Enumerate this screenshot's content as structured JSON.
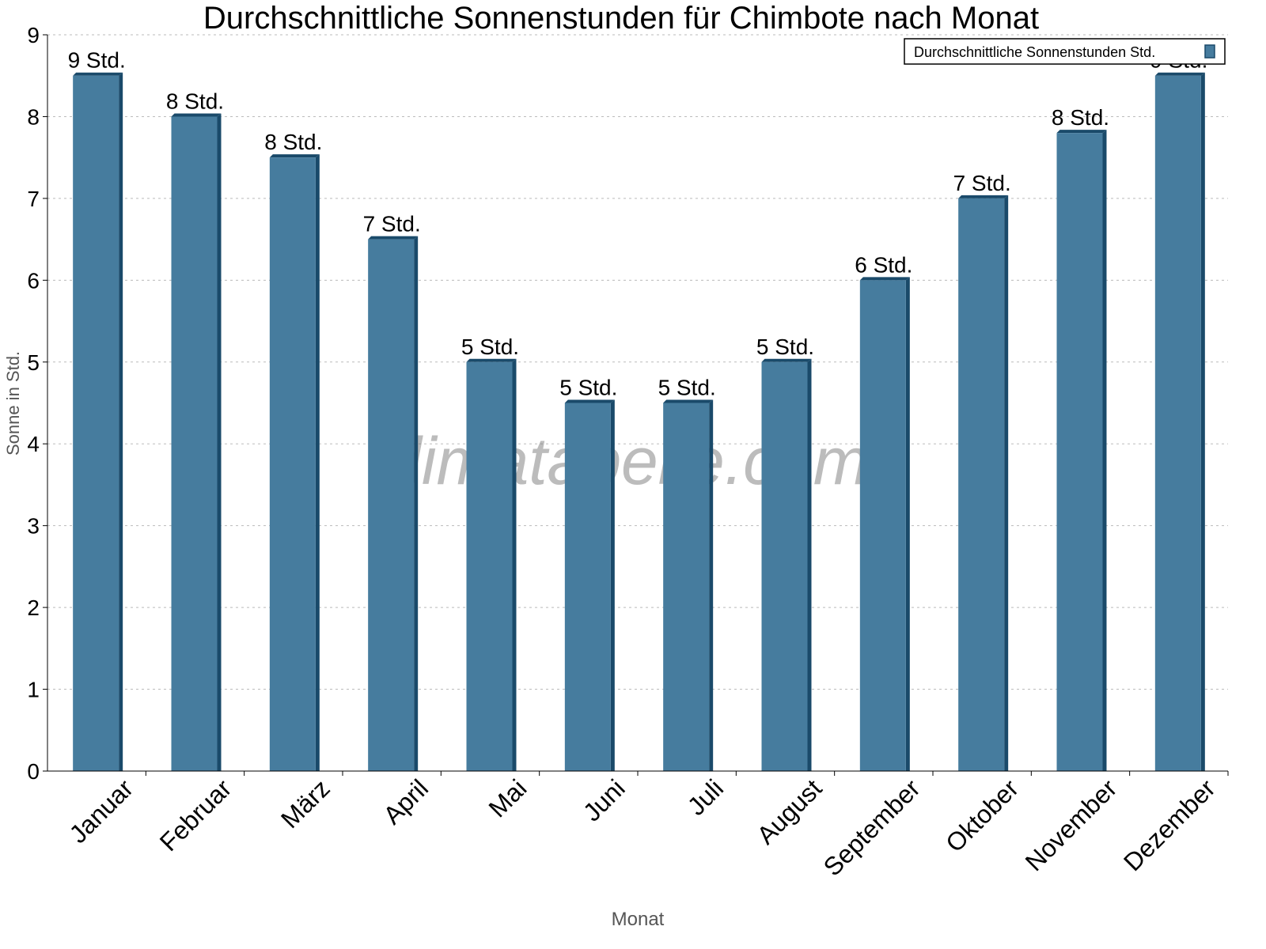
{
  "chart_data": {
    "type": "bar",
    "title": "Durchschnittliche Sonnenstunden für Chimbote nach Monat",
    "xlabel": "Monat",
    "ylabel": "Sonne in Std.",
    "ylim": [
      0,
      9
    ],
    "yticks": [
      0,
      1,
      2,
      3,
      4,
      5,
      6,
      7,
      8,
      9
    ],
    "grid": true,
    "legend_position": "top-right",
    "categories": [
      "Januar",
      "Februar",
      "März",
      "April",
      "Mai",
      "Juni",
      "Juli",
      "August",
      "September",
      "Oktober",
      "November",
      "Dezember"
    ],
    "series": [
      {
        "name": "Durchschnittliche Sonnenstunden Std.",
        "color": "#467c9e",
        "values": [
          8.5,
          8.0,
          7.5,
          6.5,
          5.0,
          4.5,
          4.5,
          5.0,
          6.0,
          7.0,
          7.8,
          8.5
        ],
        "data_labels": [
          "9 Std.",
          "8 Std.",
          "8 Std.",
          "7 Std.",
          "5 Std.",
          "5 Std.",
          "5 Std.",
          "5 Std.",
          "6 Std.",
          "7 Std.",
          "8 Std.",
          "9 Std."
        ]
      }
    ],
    "watermark": "klimatabelle.com"
  }
}
